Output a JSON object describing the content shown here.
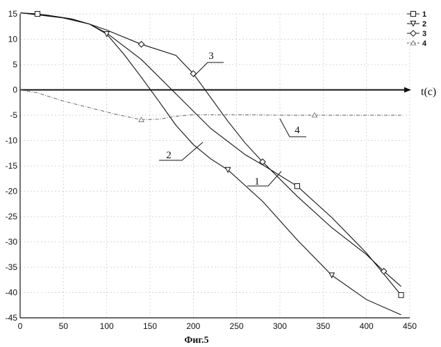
{
  "chart_data": {
    "type": "line",
    "title": "",
    "xlabel": "",
    "ylabel": "",
    "time_axis_label": "t(c)",
    "caption": "Фиг.5",
    "xlim": [
      0,
      450
    ],
    "ylim": [
      -45,
      15
    ],
    "x_ticks": [
      "0",
      "50",
      "100",
      "150",
      "200",
      "250",
      "300",
      "350",
      "400",
      "450"
    ],
    "y_ticks": [
      "15",
      "10",
      "5",
      "0",
      "-5",
      "-10",
      "-15",
      "-20",
      "-25",
      "-30",
      "-35",
      "-40",
      "-45"
    ],
    "grid": true,
    "legend_position": "top-right",
    "series": [
      {
        "name": "1",
        "marker": "square",
        "line": "solid",
        "curve_label": "1",
        "points": [
          [
            0,
            15.2
          ],
          [
            20,
            15.0
          ],
          [
            50,
            14.2
          ],
          [
            80,
            13.0
          ],
          [
            100,
            11.2
          ],
          [
            140,
            6.0
          ],
          [
            180,
            -0.8
          ],
          [
            220,
            -7.6
          ],
          [
            260,
            -12.8
          ],
          [
            280,
            -14.8
          ],
          [
            320,
            -19.0
          ],
          [
            360,
            -25.2
          ],
          [
            400,
            -32.2
          ],
          [
            440,
            -40.5
          ]
        ],
        "marker_x": [
          20,
          320,
          440
        ]
      },
      {
        "name": "2",
        "marker": "triangle-down",
        "line": "solid",
        "curve_label": "2",
        "points": [
          [
            0,
            15.2
          ],
          [
            30,
            14.8
          ],
          [
            60,
            14.0
          ],
          [
            80,
            13.0
          ],
          [
            100,
            11.0
          ],
          [
            120,
            7.0
          ],
          [
            140,
            2.5
          ],
          [
            160,
            -2.2
          ],
          [
            180,
            -7.0
          ],
          [
            200,
            -10.8
          ],
          [
            220,
            -13.6
          ],
          [
            240,
            -15.8
          ],
          [
            280,
            -22.0
          ],
          [
            320,
            -29.6
          ],
          [
            360,
            -36.6
          ],
          [
            400,
            -41.4
          ],
          [
            440,
            -44.4
          ]
        ],
        "marker_x": [
          100,
          240,
          360
        ]
      },
      {
        "name": "3",
        "marker": "diamond",
        "line": "solid",
        "curve_label": "3",
        "points": [
          [
            0,
            15.2
          ],
          [
            50,
            14.2
          ],
          [
            80,
            13.0
          ],
          [
            100,
            11.8
          ],
          [
            140,
            9.0
          ],
          [
            180,
            6.8
          ],
          [
            200,
            3.2
          ],
          [
            220,
            -1.5
          ],
          [
            240,
            -6.2
          ],
          [
            260,
            -10.5
          ],
          [
            280,
            -14.2
          ],
          [
            320,
            -21.0
          ],
          [
            360,
            -27.2
          ],
          [
            400,
            -32.5
          ],
          [
            420,
            -35.8
          ],
          [
            440,
            -38.8
          ]
        ],
        "marker_x": [
          140,
          200,
          280,
          420
        ]
      },
      {
        "name": "4",
        "marker": "triangle-up",
        "line": "dash-dot",
        "curve_label": "4",
        "points": [
          [
            0,
            0.0
          ],
          [
            20,
            -0.6
          ],
          [
            50,
            -2.2
          ],
          [
            80,
            -3.5
          ],
          [
            110,
            -4.8
          ],
          [
            140,
            -5.9
          ],
          [
            160,
            -5.8
          ],
          [
            180,
            -5.2
          ],
          [
            200,
            -4.9
          ],
          [
            250,
            -4.9
          ],
          [
            300,
            -5.0
          ],
          [
            340,
            -5.0
          ],
          [
            380,
            -5.0
          ],
          [
            440,
            -5.0
          ]
        ],
        "marker_x": [
          140,
          340
        ]
      }
    ]
  }
}
